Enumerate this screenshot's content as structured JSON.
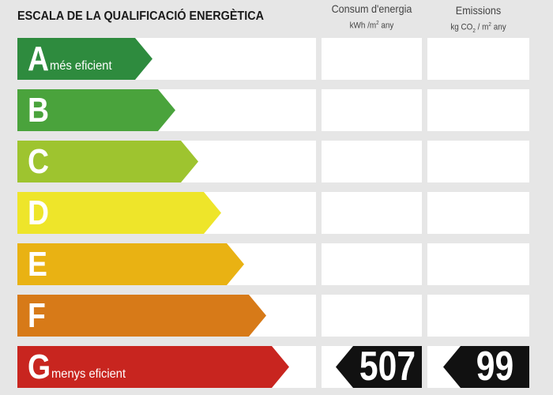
{
  "title": "ESCALA DE LA QUALIFICACIÓ ENERGÈTICA",
  "columns": {
    "consum": {
      "label": "Consum d'energia",
      "unit_pre": "kWh /m",
      "unit_sup": "2",
      "unit_post": " any"
    },
    "emissions": {
      "label": "Emissions",
      "unit_pre": "kg CO",
      "unit_sub": "2",
      "unit_mid": " / m",
      "unit_sup": "2",
      "unit_post": " any"
    }
  },
  "classes": [
    {
      "letter": "A",
      "sublabel": "més eficient",
      "color": "#2e8b3e"
    },
    {
      "letter": "B",
      "sublabel": "",
      "color": "#4aa33c"
    },
    {
      "letter": "C",
      "sublabel": "",
      "color": "#9ec42f"
    },
    {
      "letter": "D",
      "sublabel": "",
      "color": "#eee52a"
    },
    {
      "letter": "E",
      "sublabel": "",
      "color": "#e9b213"
    },
    {
      "letter": "F",
      "sublabel": "",
      "color": "#d77a18"
    },
    {
      "letter": "G",
      "sublabel": "menys eficient",
      "color": "#c8251f"
    }
  ],
  "rating": {
    "class": "G",
    "consumption_value": "507",
    "emissions_value": "99",
    "badge_color": "#111111"
  }
}
